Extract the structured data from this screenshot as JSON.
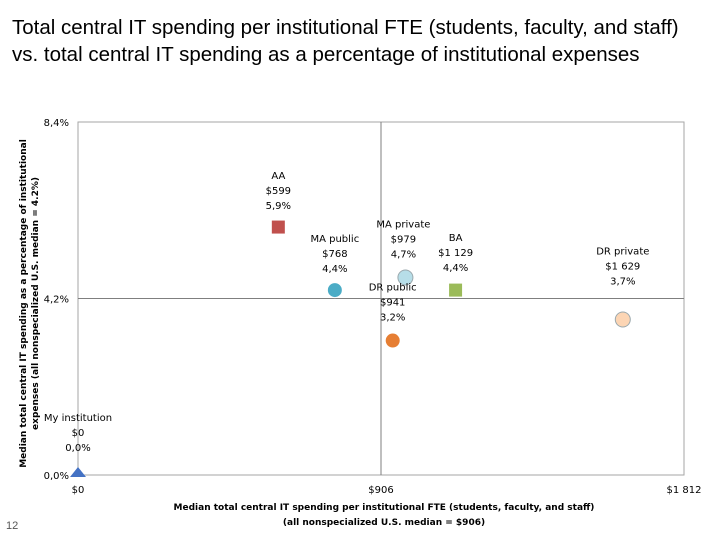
{
  "page": {
    "title_line1": "Total central IT spending per institutional FTE (students, faculty, and staff)",
    "title_line2": "vs. total central IT spending as a percentage of institutional expenses",
    "page_number": "12"
  },
  "chart_data": {
    "type": "scatter",
    "title": "Total central IT spending per institutional FTE (students, faculty, and staff) vs. total central IT spending as a percentage of institutional expenses",
    "xlabel_line1": "Median total central IT spending per institutional FTE (students, faculty, and staff)",
    "xlabel_line2": "(all nonspecialized U.S. median = $906)",
    "ylabel_line1": "Median total central IT spending as a percentage of institutional",
    "ylabel_line2": "expenses (all nonspecialized U.S. median = 4.2%)",
    "xlim": [
      0,
      1812
    ],
    "ylim": [
      0,
      8.4
    ],
    "x_ticks": [
      {
        "value": 0,
        "label": "$0"
      },
      {
        "value": 906,
        "label": "$906"
      },
      {
        "value": 1812,
        "label": "$1 812"
      }
    ],
    "y_ticks": [
      {
        "value": 0,
        "label": "0,0%"
      },
      {
        "value": 4.2,
        "label": "4,2%"
      },
      {
        "value": 8.4,
        "label": "8,4%"
      }
    ],
    "grid": false,
    "median_lines": {
      "x": 906,
      "y": 4.2
    },
    "points": [
      {
        "name": "My institution",
        "x": 0,
        "y": 0.0,
        "x_label": "$0",
        "y_label": "0,0%",
        "shape": "triangle",
        "color": "#4472c4",
        "label_dx": 0,
        "label_dy": -54
      },
      {
        "name": "AA",
        "x": 599,
        "y": 5.9,
        "x_label": "$599",
        "y_label": "5,9%",
        "shape": "square",
        "color": "#c0504d",
        "label_dx": 0,
        "label_dy": -48
      },
      {
        "name": "MA public",
        "x": 768,
        "y": 4.4,
        "x_label": "$768",
        "y_label": "4,4%",
        "shape": "circle",
        "color": "#4bacc6",
        "label_dx": 0,
        "label_dy": -48
      },
      {
        "name": "MA private",
        "x": 979,
        "y": 4.7,
        "x_label": "$979",
        "y_label": "4,7%",
        "shape": "circle",
        "color": "#b7dee8",
        "label_dx": -2,
        "label_dy": -50
      },
      {
        "name": "BA",
        "x": 1129,
        "y": 4.4,
        "x_label": "$1 129",
        "y_label": "4,4%",
        "shape": "square",
        "color": "#9bbb59",
        "label_dx": 0,
        "label_dy": -49
      },
      {
        "name": "DR public",
        "x": 941,
        "y": 3.2,
        "x_label": "$941",
        "y_label": "3,2%",
        "shape": "circle",
        "color": "#e67e33",
        "label_dx": 0,
        "label_dy": -50
      },
      {
        "name": "DR private",
        "x": 1629,
        "y": 3.7,
        "x_label": "$1 629",
        "y_label": "3,7%",
        "shape": "circle",
        "color": "#fcd5b4",
        "label_dx": 0,
        "label_dy": -65
      }
    ]
  }
}
